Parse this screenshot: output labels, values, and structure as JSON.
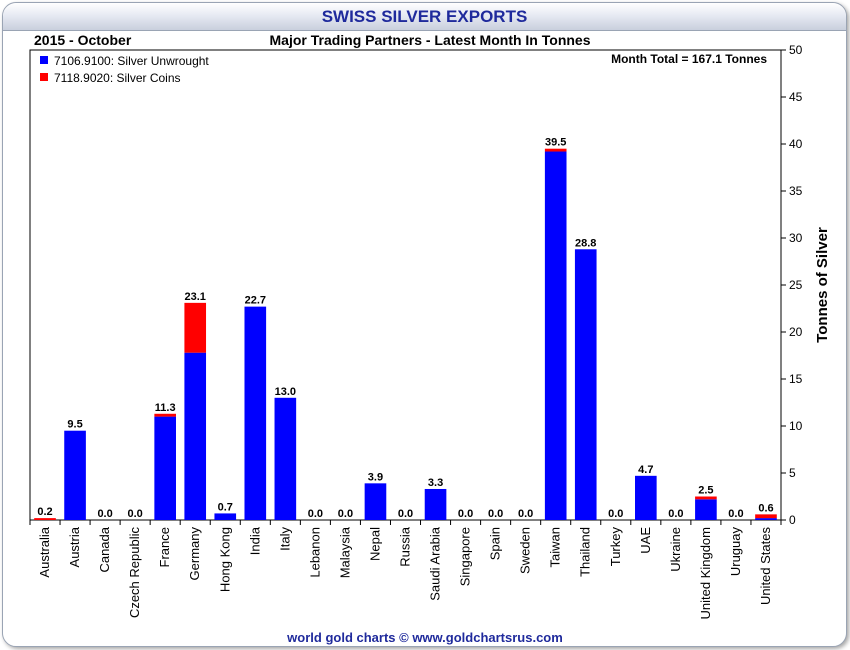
{
  "header": {
    "title": "SWISS SILVER EXPORTS"
  },
  "footer": {
    "credit": "world gold charts © www.goldchartsrus.com"
  },
  "chart_data": {
    "type": "bar",
    "stacked": true,
    "period": "2015 - October",
    "title": "Major Trading Partners - Latest Month In Tonnes",
    "annotation": "Month Total = 167.1 Tonnes",
    "ylabel": "Tonnes of Silver",
    "ylim": [
      0,
      50
    ],
    "yticks": [
      0,
      5,
      10,
      15,
      20,
      25,
      30,
      35,
      40,
      45,
      50
    ],
    "y_axis_side": "right",
    "legend_position": "top-left",
    "categories": [
      "Australia",
      "Austria",
      "Canada",
      "Czech Republic",
      "France",
      "Germany",
      "Hong Kong",
      "India",
      "Italy",
      "Lebanon",
      "Malaysia",
      "Nepal",
      "Russia",
      "Saudi Arabia",
      "Singapore",
      "Spain",
      "Sweden",
      "Taiwan",
      "Thailand",
      "Turkey",
      "UAE",
      "Ukraine",
      "United Kingdom",
      "Uruguay",
      "United States"
    ],
    "series": [
      {
        "name": "7106.9100: Silver Unwrought",
        "color": "#0000ff",
        "values": [
          0.0,
          9.5,
          0.0,
          0.0,
          11.0,
          17.8,
          0.7,
          22.7,
          13.0,
          0.0,
          0.0,
          3.9,
          0.0,
          3.3,
          0.0,
          0.0,
          0.0,
          39.2,
          28.8,
          0.0,
          4.7,
          0.0,
          2.2,
          0.0,
          0.2
        ]
      },
      {
        "name": "7118.9020: Silver Coins",
        "color": "#ff0000",
        "values": [
          0.2,
          0.0,
          0.0,
          0.0,
          0.3,
          5.3,
          0.0,
          0.0,
          0.0,
          0.0,
          0.0,
          0.0,
          0.0,
          0.0,
          0.0,
          0.0,
          0.0,
          0.3,
          0.0,
          0.0,
          0.0,
          0.0,
          0.3,
          0.0,
          0.4
        ]
      }
    ],
    "totals_labels": [
      "0.2",
      "9.5",
      "0.0",
      "0.0",
      "11.3",
      "23.1",
      "0.7",
      "22.7",
      "13.0",
      "0.0",
      "0.0",
      "3.9",
      "0.0",
      "3.3",
      "0.0",
      "0.0",
      "0.0",
      "39.5",
      "28.8",
      "0.0",
      "4.7",
      "0.0",
      "2.5",
      "0.0",
      "0.6"
    ]
  }
}
